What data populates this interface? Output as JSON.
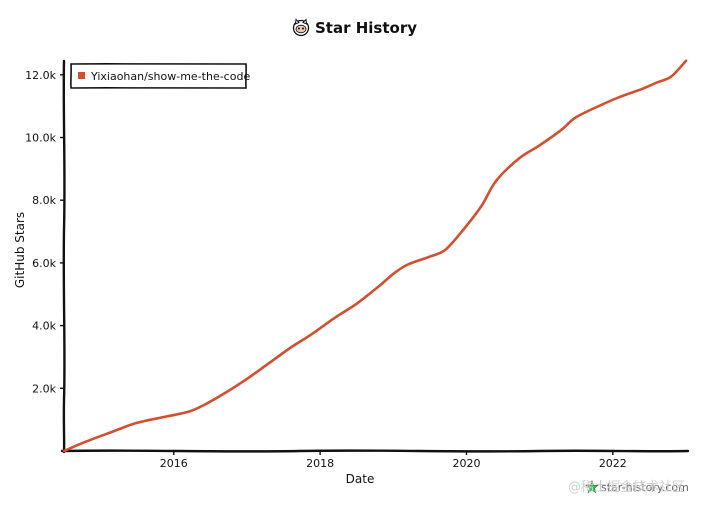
{
  "chart_data": {
    "type": "line",
    "title": "Star History",
    "xlabel": "Date",
    "ylabel": "GitHub Stars",
    "xlim": [
      2014.5,
      2023.0
    ],
    "ylim": [
      0,
      12600
    ],
    "x_ticks": [
      {
        "value": 2016,
        "label": "2016"
      },
      {
        "value": 2018,
        "label": "2018"
      },
      {
        "value": 2020,
        "label": "2020"
      },
      {
        "value": 2022,
        "label": "2022"
      }
    ],
    "y_ticks": [
      {
        "value": 2000,
        "label": "2.0k"
      },
      {
        "value": 4000,
        "label": "4.0k"
      },
      {
        "value": 6000,
        "label": "6.0k"
      },
      {
        "value": 8000,
        "label": "8.0k"
      },
      {
        "value": 10000,
        "label": "10.0k"
      },
      {
        "value": 12000,
        "label": "12.0k"
      }
    ],
    "grid": false,
    "legend_position": "top-left",
    "series": [
      {
        "name": "Yixiaohan/show-me-the-code",
        "color": "#d0502f",
        "points": [
          {
            "x": 2014.5,
            "y": 0
          },
          {
            "x": 2014.8,
            "y": 300
          },
          {
            "x": 2015.2,
            "y": 650
          },
          {
            "x": 2015.5,
            "y": 900
          },
          {
            "x": 2015.9,
            "y": 1100
          },
          {
            "x": 2016.2,
            "y": 1250
          },
          {
            "x": 2016.4,
            "y": 1450
          },
          {
            "x": 2016.7,
            "y": 1850
          },
          {
            "x": 2017.0,
            "y": 2300
          },
          {
            "x": 2017.3,
            "y": 2800
          },
          {
            "x": 2017.6,
            "y": 3300
          },
          {
            "x": 2017.9,
            "y": 3750
          },
          {
            "x": 2018.2,
            "y": 4250
          },
          {
            "x": 2018.5,
            "y": 4700
          },
          {
            "x": 2018.8,
            "y": 5250
          },
          {
            "x": 2019.0,
            "y": 5650
          },
          {
            "x": 2019.2,
            "y": 5950
          },
          {
            "x": 2019.5,
            "y": 6200
          },
          {
            "x": 2019.7,
            "y": 6400
          },
          {
            "x": 2019.9,
            "y": 6900
          },
          {
            "x": 2020.2,
            "y": 7800
          },
          {
            "x": 2020.4,
            "y": 8600
          },
          {
            "x": 2020.7,
            "y": 9300
          },
          {
            "x": 2021.0,
            "y": 9750
          },
          {
            "x": 2021.3,
            "y": 10250
          },
          {
            "x": 2021.5,
            "y": 10650
          },
          {
            "x": 2021.9,
            "y": 11100
          },
          {
            "x": 2022.1,
            "y": 11300
          },
          {
            "x": 2022.4,
            "y": 11550
          },
          {
            "x": 2022.6,
            "y": 11750
          },
          {
            "x": 2022.8,
            "y": 11950
          },
          {
            "x": 2023.0,
            "y": 12450
          }
        ]
      }
    ]
  },
  "watermark": {
    "site": "star-history.com",
    "overlay": "@稀土掘金技术社区"
  },
  "colors": {
    "series": "#d0502f",
    "axis": "#111111",
    "legend_border": "#111111"
  },
  "icons": {
    "title_icon": "octocat-icon",
    "watermark_icon": "star-logo-icon"
  }
}
